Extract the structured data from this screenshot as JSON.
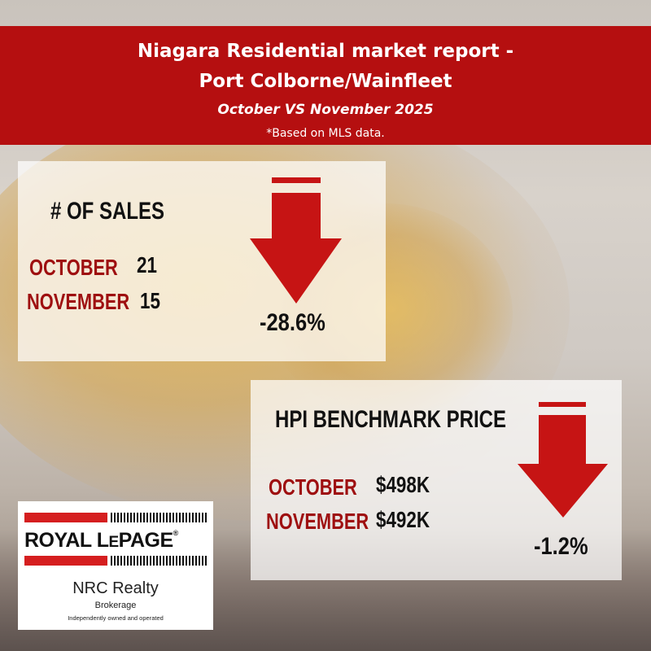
{
  "header": {
    "title_line1": "Niagara Residential market report -",
    "title_line2": "Port Colborne/Wainfleet",
    "subtitle": "October VS November 2025",
    "note": "*Based on MLS data."
  },
  "sales": {
    "heading": "# OF SALES",
    "october_label": "OCTOBER",
    "october_value": "21",
    "november_label": "NOVEMBER",
    "november_value": "15",
    "change": "-28.6%",
    "trend": "down"
  },
  "hpi": {
    "heading": "HPI BENCHMARK PRICE",
    "october_label": "OCTOBER",
    "october_value": "$498K",
    "november_label": "NOVEMBER",
    "november_value": "$492K",
    "change": "-1.2%",
    "trend": "down"
  },
  "logo": {
    "brand": "ROYAL LEPAGE",
    "brand_part1": "ROYAL L",
    "brand_part2": "E",
    "brand_part3": "PAGE",
    "registered": "®",
    "office": "NRC Realty",
    "type": "Brokerage",
    "tagline": "Independently owned and operated"
  },
  "colors": {
    "brand_red": "#b50f10",
    "label_red": "#9e0f10",
    "arrow_red": "#c61414"
  }
}
